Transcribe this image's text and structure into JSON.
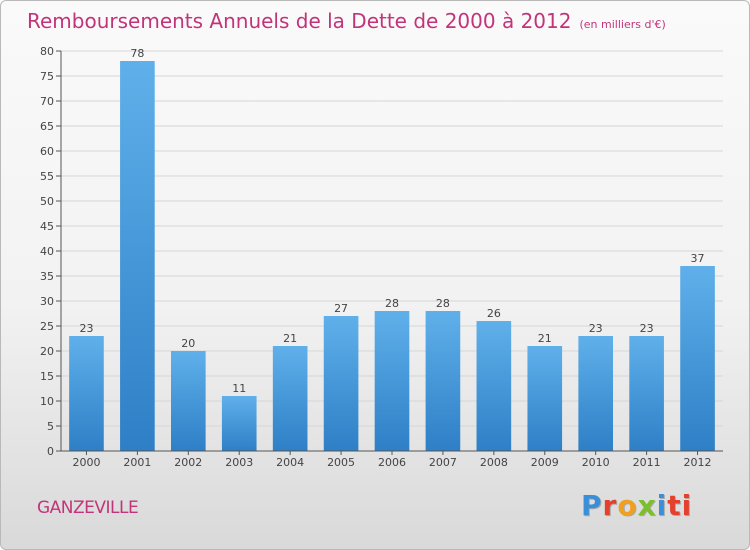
{
  "header": {
    "title": "Remboursements Annuels de la Dette de 2000 à 2012",
    "unit": "(en milliers d'€)"
  },
  "footer": {
    "city": "GANZEVILLE",
    "brand": [
      "P",
      "r",
      "o",
      "x",
      "i",
      "ti"
    ]
  },
  "colors": {
    "title": "#c2347a",
    "bar_top": "#5fb0ea",
    "bar_bottom": "#2e7fc6"
  },
  "chart_data": {
    "type": "bar",
    "title": "Remboursements Annuels de la Dette de 2000 à 2012",
    "xlabel": "",
    "ylabel": "",
    "categories": [
      "2000",
      "2001",
      "2002",
      "2003",
      "2004",
      "2005",
      "2006",
      "2007",
      "2008",
      "2009",
      "2010",
      "2011",
      "2012"
    ],
    "values": [
      23,
      78,
      20,
      11,
      21,
      27,
      28,
      28,
      26,
      21,
      23,
      23,
      37
    ],
    "ylim": [
      0,
      80
    ],
    "yticks": [
      0,
      5,
      10,
      15,
      20,
      25,
      30,
      35,
      40,
      45,
      50,
      55,
      60,
      65,
      70,
      75,
      80
    ],
    "grid": true,
    "legend": "none"
  }
}
